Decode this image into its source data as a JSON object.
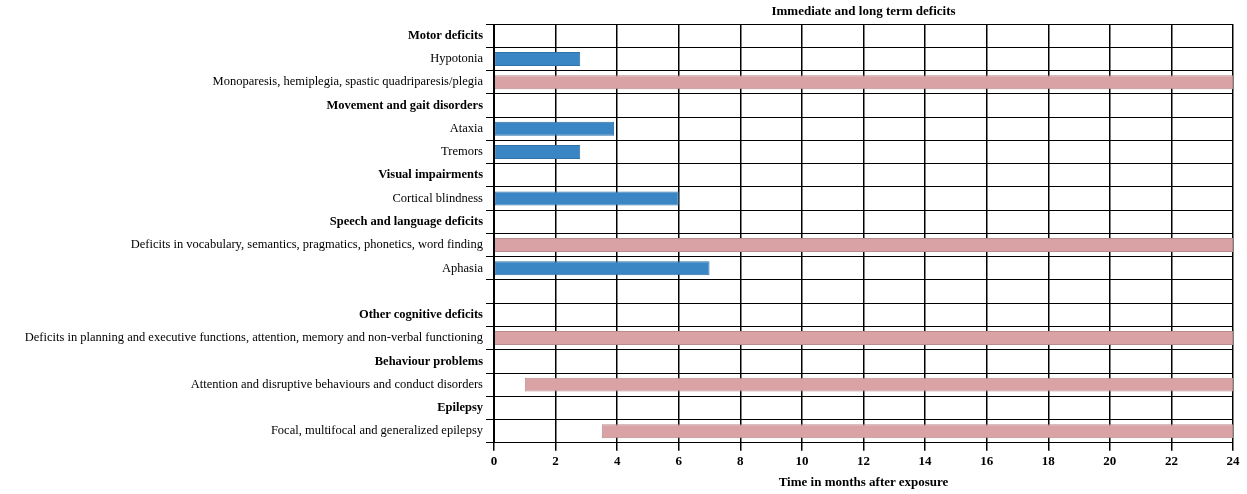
{
  "chart_data": {
    "type": "bar",
    "orientation": "horizontal",
    "title": "Immediate and long term deficits",
    "xlabel": "Time in months after exposure",
    "categories": [
      "Motor deficits",
      "Hypotonia",
      "Monoparesis, hemiplegia, spastic quadriparesis/plegia",
      "Movement and gait disorders",
      "Ataxia",
      "Tremors",
      "Visual impairments",
      "Cortical blindness",
      "Speech and language deficits",
      "Deficits in vocabulary, semantics, pragmatics, phonetics, word finding",
      "Aphasia",
      null,
      "Other cognitive deficits",
      "Deficits in planning and executive functions, attention, memory and non-verbal functioning",
      "Behaviour problems",
      "Attention and disruptive behaviours and conduct disorders",
      "Epilepsy",
      "Focal, multifocal and generalized epilepsy"
    ],
    "base": [
      null,
      0,
      0,
      null,
      0,
      0,
      null,
      0,
      null,
      0,
      0,
      null,
      null,
      0,
      null,
      1,
      null,
      3.5
    ],
    "values": [
      null,
      2.8,
      24,
      null,
      3.9,
      2.8,
      null,
      6,
      null,
      24,
      7,
      null,
      null,
      24,
      null,
      23,
      null,
      20.5
    ],
    "colors": [
      "#3a86c5",
      "#3a86c5",
      "#d9a3a6",
      "#3a86c5",
      "#3a86c5",
      "#3a86c5",
      "#3a86c5",
      "#3a86c5",
      "#3a86c5",
      "#d9a3a6",
      "#3a86c5",
      "#3a86c5",
      "#3a86c5",
      "#d9a3a6",
      "#3a86c5",
      "#d9a3a6",
      "#3a86c5",
      "#d9a3a6"
    ],
    "xlim": [
      0,
      24
    ],
    "xticks": [
      0,
      2,
      4,
      6,
      8,
      10,
      12,
      14,
      16,
      18,
      20,
      22,
      24
    ],
    "grid": true,
    "legend": false
  }
}
